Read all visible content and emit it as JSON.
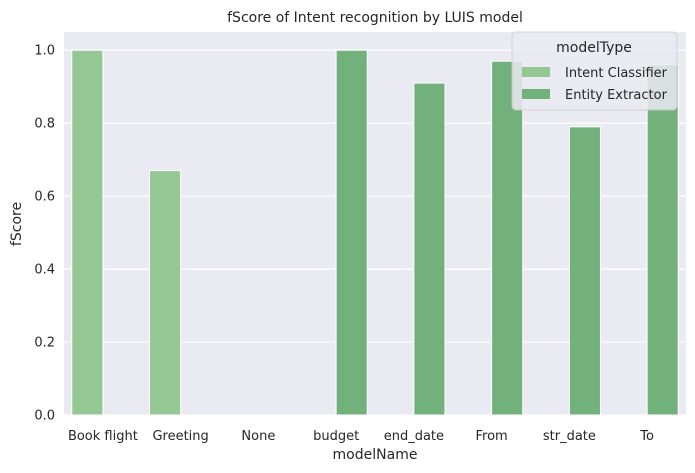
{
  "chart_data": {
    "type": "bar",
    "title": "fScore of Intent recognition by LUIS model",
    "xlabel": "modelName",
    "ylabel": "fScore",
    "ylim": [
      0,
      1.05
    ],
    "yticks": [
      "0.0",
      "0.2",
      "0.4",
      "0.6",
      "0.8",
      "1.0"
    ],
    "grid": true,
    "categories": [
      "Book flight",
      "Greeting",
      "None",
      "budget",
      "end_date",
      "From",
      "str_date",
      "To"
    ],
    "series": [
      {
        "name": "Intent Classifier",
        "color": "#95c794",
        "values": [
          1.0,
          0.67,
          0.0,
          null,
          null,
          null,
          null,
          null
        ]
      },
      {
        "name": "Entity Extractor",
        "color": "#72b07c",
        "values": [
          null,
          null,
          null,
          1.0,
          0.91,
          0.97,
          0.79,
          0.96
        ]
      }
    ],
    "legend": {
      "title": "modelType",
      "placement": "upper right"
    },
    "plot_background": "#eaeaf2",
    "grid_color": "#ffffff"
  }
}
